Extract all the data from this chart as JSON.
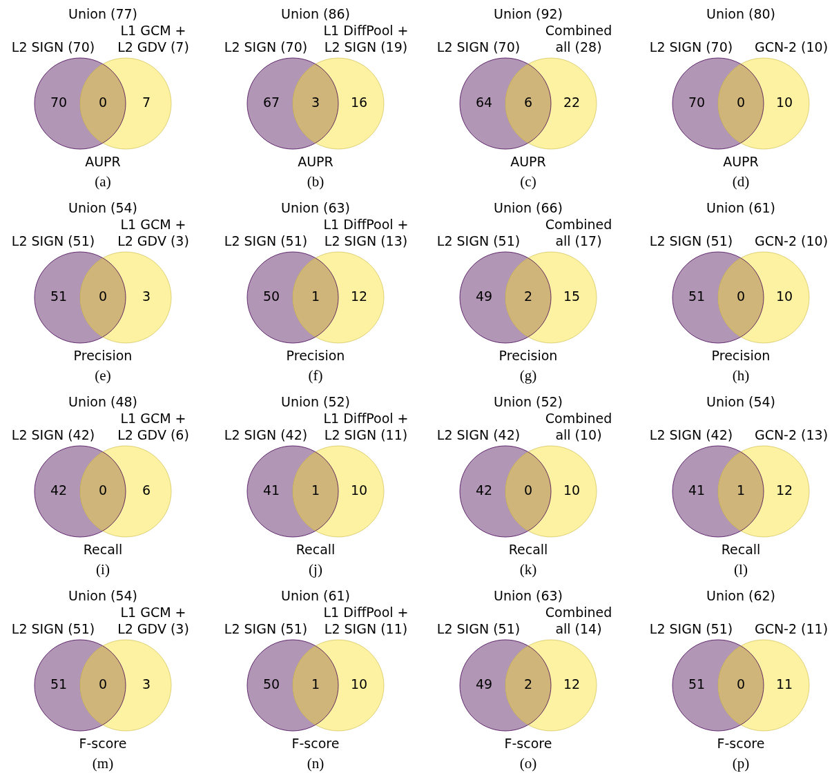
{
  "chart_data": [
    {
      "type": "other",
      "data_labels": true,
      "title": "Union (77)",
      "xlabel": "AUPR",
      "annotations": [
        "(a)"
      ],
      "categories": [
        "L2 SIGN (70)",
        null,
        "L1 GCM +\nL2 GDV (7)"
      ],
      "values": [
        70,
        0,
        7
      ],
      "colors": [
        "#b296b5",
        "#cfb57a",
        "#fcf2a2"
      ]
    },
    {
      "type": "other",
      "data_labels": true,
      "title": "Union (86)",
      "xlabel": "AUPR",
      "annotations": [
        "(b)"
      ],
      "categories": [
        "L2 SIGN (70)",
        null,
        "L1 DiffPool +\nL2 SIGN (19)"
      ],
      "values": [
        67,
        3,
        16
      ],
      "colors": [
        "#b296b5",
        "#cfb57a",
        "#fcf2a2"
      ]
    },
    {
      "type": "other",
      "data_labels": true,
      "title": "Union (92)",
      "xlabel": "AUPR",
      "annotations": [
        "(c)"
      ],
      "categories": [
        "L2 SIGN (70)",
        null,
        "Combined\nall (28)"
      ],
      "values": [
        64,
        6,
        22
      ],
      "colors": [
        "#b296b5",
        "#cfb57a",
        "#fcf2a2"
      ]
    },
    {
      "type": "other",
      "data_labels": true,
      "title": "Union (80)",
      "xlabel": "AUPR",
      "annotations": [
        "(d)"
      ],
      "categories": [
        "L2 SIGN (70)",
        null,
        "GCN-2 (10)"
      ],
      "values": [
        70,
        0,
        10
      ],
      "colors": [
        "#b296b5",
        "#cfb57a",
        "#fcf2a2"
      ]
    },
    {
      "type": "other",
      "data_labels": true,
      "title": "Union (54)",
      "xlabel": "Precision",
      "annotations": [
        "(e)"
      ],
      "categories": [
        "L2 SIGN (51)",
        null,
        "L1 GCM +\nL2 GDV (3)"
      ],
      "values": [
        51,
        0,
        3
      ],
      "colors": [
        "#b296b5",
        "#cfb57a",
        "#fcf2a2"
      ]
    },
    {
      "type": "other",
      "data_labels": true,
      "title": "Union (63)",
      "xlabel": "Precision",
      "annotations": [
        "(f)"
      ],
      "categories": [
        "L2 SIGN (51)",
        null,
        "L1 DiffPool +\nL2 SIGN (13)"
      ],
      "values": [
        50,
        1,
        12
      ],
      "colors": [
        "#b296b5",
        "#cfb57a",
        "#fcf2a2"
      ]
    },
    {
      "type": "other",
      "data_labels": true,
      "title": "Union (66)",
      "xlabel": "Precision",
      "annotations": [
        "(g)"
      ],
      "categories": [
        "L2 SIGN (51)",
        null,
        "Combined\nall (17)"
      ],
      "values": [
        49,
        2,
        15
      ],
      "colors": [
        "#b296b5",
        "#cfb57a",
        "#fcf2a2"
      ]
    },
    {
      "type": "other",
      "data_labels": true,
      "title": "Union (61)",
      "xlabel": "Precision",
      "annotations": [
        "(h)"
      ],
      "categories": [
        "L2 SIGN (51)",
        null,
        "GCN-2 (10)"
      ],
      "values": [
        51,
        0,
        10
      ],
      "colors": [
        "#b296b5",
        "#cfb57a",
        "#fcf2a2"
      ]
    },
    {
      "type": "other",
      "data_labels": true,
      "title": "Union (48)",
      "xlabel": "Recall",
      "annotations": [
        "(i)"
      ],
      "categories": [
        "L2 SIGN (42)",
        null,
        "L1 GCM +\nL2 GDV (6)"
      ],
      "values": [
        42,
        0,
        6
      ],
      "colors": [
        "#b296b5",
        "#cfb57a",
        "#fcf2a2"
      ]
    },
    {
      "type": "other",
      "data_labels": true,
      "title": "Union (52)",
      "xlabel": "Recall",
      "annotations": [
        "(j)"
      ],
      "categories": [
        "L2 SIGN (42)",
        null,
        "L1 DiffPool +\nL2 SIGN (11)"
      ],
      "values": [
        41,
        1,
        10
      ],
      "colors": [
        "#b296b5",
        "#cfb57a",
        "#fcf2a2"
      ]
    },
    {
      "type": "other",
      "data_labels": true,
      "title": "Union (52)",
      "xlabel": "Recall",
      "annotations": [
        "(k)"
      ],
      "categories": [
        "L2 SIGN (42)",
        null,
        "Combined\nall (10)"
      ],
      "values": [
        42,
        0,
        10
      ],
      "colors": [
        "#b296b5",
        "#cfb57a",
        "#fcf2a2"
      ]
    },
    {
      "type": "other",
      "data_labels": true,
      "title": "Union (54)",
      "xlabel": "Recall",
      "annotations": [
        "(l)"
      ],
      "categories": [
        "L2 SIGN (42)",
        null,
        "GCN-2 (13)"
      ],
      "values": [
        41,
        1,
        12
      ],
      "colors": [
        "#b296b5",
        "#cfb57a",
        "#fcf2a2"
      ]
    },
    {
      "type": "other",
      "data_labels": true,
      "title": "Union (54)",
      "xlabel": "F-score",
      "annotations": [
        "(m)"
      ],
      "categories": [
        "L2 SIGN (51)",
        null,
        "L1 GCM +\nL2 GDV (3)"
      ],
      "values": [
        51,
        0,
        3
      ],
      "colors": [
        "#b296b5",
        "#cfb57a",
        "#fcf2a2"
      ]
    },
    {
      "type": "other",
      "data_labels": true,
      "title": "Union (61)",
      "xlabel": "F-score",
      "annotations": [
        "(n)"
      ],
      "categories": [
        "L2 SIGN (51)",
        null,
        "L1 DiffPool +\nL2 SIGN (11)"
      ],
      "values": [
        50,
        1,
        10
      ],
      "colors": [
        "#b296b5",
        "#cfb57a",
        "#fcf2a2"
      ]
    },
    {
      "type": "other",
      "data_labels": true,
      "title": "Union (63)",
      "xlabel": "F-score",
      "annotations": [
        "(o)"
      ],
      "categories": [
        "L2 SIGN (51)",
        null,
        "Combined\nall (14)"
      ],
      "values": [
        49,
        2,
        12
      ],
      "colors": [
        "#b296b5",
        "#cfb57a",
        "#fcf2a2"
      ]
    },
    {
      "type": "other",
      "data_labels": true,
      "title": "Union (62)",
      "xlabel": "F-score",
      "annotations": [
        "(p)"
      ],
      "categories": [
        "L2 SIGN (51)",
        null,
        "GCN-2 (11)"
      ],
      "values": [
        51,
        0,
        11
      ],
      "colors": [
        "#b296b5",
        "#cfb57a",
        "#fcf2a2"
      ]
    }
  ]
}
